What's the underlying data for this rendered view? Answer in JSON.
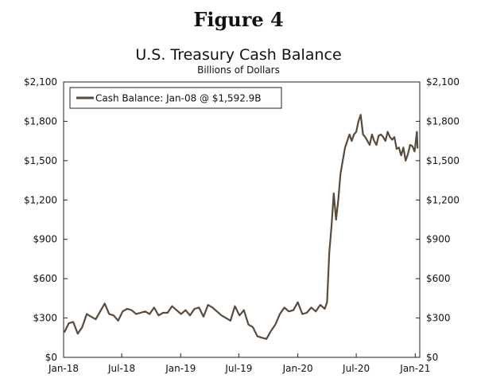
{
  "figure_label": "Figure 4",
  "chart_data": {
    "type": "line",
    "title": "U.S. Treasury Cash Balance",
    "subtitle": "Billions of Dollars",
    "ylim": [
      0,
      2100
    ],
    "yticks": [
      0,
      300,
      600,
      900,
      1200,
      1500,
      1800,
      2100
    ],
    "ytick_labels": [
      "$0",
      "$300",
      "$600",
      "$900",
      "$1,200",
      "$1,500",
      "$1,800",
      "$2,100"
    ],
    "xticks": [
      "2018-01-01",
      "2018-07-01",
      "2019-01-01",
      "2019-07-01",
      "2020-01-01",
      "2020-07-01",
      "2021-01-01"
    ],
    "xtick_labels": [
      "Jan-18",
      "Jul-18",
      "Jan-19",
      "Jul-19",
      "Jan-20",
      "Jul-20",
      "Jan-21"
    ],
    "xlim": [
      "2018-01-01",
      "2021-01-15"
    ],
    "legend_position": "top-left",
    "grid": false,
    "series": [
      {
        "name": "Cash Balance: Jan-08 @ $1,592.9B",
        "color": "#5a4a3c",
        "x": [
          "2018-01-03",
          "2018-01-17",
          "2018-01-31",
          "2018-02-14",
          "2018-02-28",
          "2018-03-14",
          "2018-03-28",
          "2018-04-11",
          "2018-04-25",
          "2018-05-09",
          "2018-05-23",
          "2018-06-06",
          "2018-06-20",
          "2018-07-04",
          "2018-07-18",
          "2018-08-01",
          "2018-08-15",
          "2018-08-29",
          "2018-09-12",
          "2018-09-26",
          "2018-10-10",
          "2018-10-24",
          "2018-11-07",
          "2018-11-21",
          "2018-12-05",
          "2018-12-19",
          "2019-01-02",
          "2019-01-16",
          "2019-01-30",
          "2019-02-13",
          "2019-02-27",
          "2019-03-13",
          "2019-03-27",
          "2019-04-10",
          "2019-04-24",
          "2019-05-08",
          "2019-05-22",
          "2019-06-05",
          "2019-06-19",
          "2019-07-03",
          "2019-07-17",
          "2019-07-31",
          "2019-08-14",
          "2019-08-28",
          "2019-09-11",
          "2019-09-25",
          "2019-10-09",
          "2019-10-23",
          "2019-11-06",
          "2019-11-20",
          "2019-12-04",
          "2019-12-18",
          "2020-01-01",
          "2020-01-15",
          "2020-01-29",
          "2020-02-12",
          "2020-02-26",
          "2020-03-11",
          "2020-03-25",
          "2020-04-01",
          "2020-04-08",
          "2020-04-15",
          "2020-04-22",
          "2020-04-29",
          "2020-05-06",
          "2020-05-13",
          "2020-05-20",
          "2020-05-27",
          "2020-06-03",
          "2020-06-10",
          "2020-06-17",
          "2020-06-24",
          "2020-07-01",
          "2020-07-08",
          "2020-07-15",
          "2020-07-22",
          "2020-07-29",
          "2020-08-05",
          "2020-08-12",
          "2020-08-19",
          "2020-08-26",
          "2020-09-02",
          "2020-09-09",
          "2020-09-16",
          "2020-09-23",
          "2020-09-30",
          "2020-10-07",
          "2020-10-14",
          "2020-10-21",
          "2020-10-28",
          "2020-11-04",
          "2020-11-11",
          "2020-11-18",
          "2020-11-25",
          "2020-12-02",
          "2020-12-09",
          "2020-12-16",
          "2020-12-23",
          "2020-12-30",
          "2021-01-06",
          "2021-01-08"
        ],
        "values": [
          190,
          260,
          270,
          180,
          230,
          330,
          310,
          290,
          350,
          410,
          330,
          320,
          280,
          350,
          370,
          360,
          330,
          340,
          350,
          330,
          380,
          320,
          340,
          340,
          390,
          360,
          330,
          360,
          320,
          370,
          380,
          310,
          400,
          380,
          350,
          320,
          300,
          280,
          390,
          320,
          360,
          250,
          230,
          160,
          150,
          140,
          200,
          250,
          330,
          380,
          350,
          360,
          420,
          330,
          340,
          380,
          350,
          400,
          370,
          420,
          800,
          1000,
          1250,
          1050,
          1200,
          1400,
          1500,
          1600,
          1650,
          1700,
          1650,
          1700,
          1720,
          1800,
          1850,
          1700,
          1680,
          1650,
          1620,
          1700,
          1650,
          1620,
          1690,
          1700,
          1680,
          1650,
          1720,
          1680,
          1660,
          1680,
          1590,
          1600,
          1540,
          1600,
          1500,
          1550,
          1620,
          1610,
          1570,
          1720,
          1592.9
        ]
      }
    ]
  }
}
